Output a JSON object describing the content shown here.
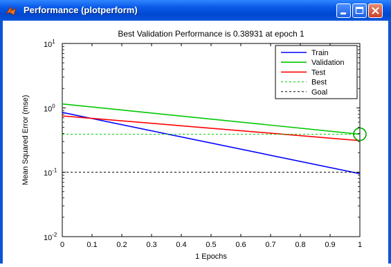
{
  "window": {
    "title": "Performance (plotperform)",
    "icons": {
      "app": "matlab-icon",
      "minimize": "minimize-icon",
      "maximize": "maximize-icon",
      "close": "close-icon"
    }
  },
  "chart_data": {
    "type": "line",
    "title": "Best Validation Performance is 0.38931 at epoch 1",
    "xlabel": "1 Epochs",
    "ylabel": "Mean Squared Error  (mse)",
    "xlim": [
      0,
      1
    ],
    "ylim": [
      0.01,
      10
    ],
    "y_scale": "log",
    "x_ticks": [
      "0",
      "0.1",
      "0.2",
      "0.3",
      "0.4",
      "0.5",
      "0.6",
      "0.7",
      "0.8",
      "0.9",
      "1"
    ],
    "y_ticks": [
      {
        "value": 10,
        "base": "10",
        "exp": "1"
      },
      {
        "value": 1,
        "base": "10",
        "exp": "0"
      },
      {
        "value": 0.1,
        "base": "10",
        "exp": "-1"
      },
      {
        "value": 0.01,
        "base": "10",
        "exp": "-2"
      }
    ],
    "series": [
      {
        "name": "Train",
        "x": [
          0,
          1
        ],
        "y": [
          0.85,
          0.095
        ],
        "color": "#0000ff",
        "style": "solid"
      },
      {
        "name": "Validation",
        "x": [
          0,
          1
        ],
        "y": [
          1.15,
          0.38931
        ],
        "color": "#00c800",
        "style": "solid"
      },
      {
        "name": "Test",
        "x": [
          0,
          1
        ],
        "y": [
          0.75,
          0.31
        ],
        "color": "#ff0000",
        "style": "solid"
      },
      {
        "name": "Best",
        "x": [
          0,
          1
        ],
        "y": [
          0.38931,
          0.38931
        ],
        "color": "#00c800",
        "style": "dashed"
      },
      {
        "name": "Goal",
        "x": [
          0,
          1
        ],
        "y": [
          0.1,
          0.1
        ],
        "color": "#000000",
        "style": "dashed"
      }
    ],
    "best_marker": {
      "x": 1,
      "y": 0.38931,
      "color": "#00a000"
    },
    "legend_position": "top-right",
    "grid": false
  }
}
